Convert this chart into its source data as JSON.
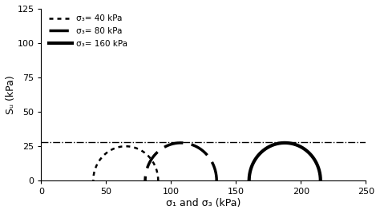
{
  "xlabel": "σ₁ and σ₃ (kPa)",
  "ylabel": "Sᵤ (kPa)",
  "xlim": [
    0,
    250
  ],
  "ylim": [
    0,
    125
  ],
  "xticks": [
    0,
    50,
    100,
    150,
    200,
    250
  ],
  "yticks": [
    0,
    25,
    50,
    75,
    100,
    125
  ],
  "su_line": 28,
  "circles": [
    {
      "sigma3": 40,
      "sigma1": 90,
      "linestyle": "dotted",
      "label": "σ₃= 40 kPa"
    },
    {
      "sigma3": 80,
      "sigma1": 135,
      "linestyle": "dashed",
      "label": "σ₃= 80 kPa"
    },
    {
      "sigma3": 160,
      "sigma1": 215,
      "linestyle": "solid",
      "label": "σ₃= 160 kPa"
    }
  ],
  "background_color": "#ffffff",
  "line_color": "#000000"
}
